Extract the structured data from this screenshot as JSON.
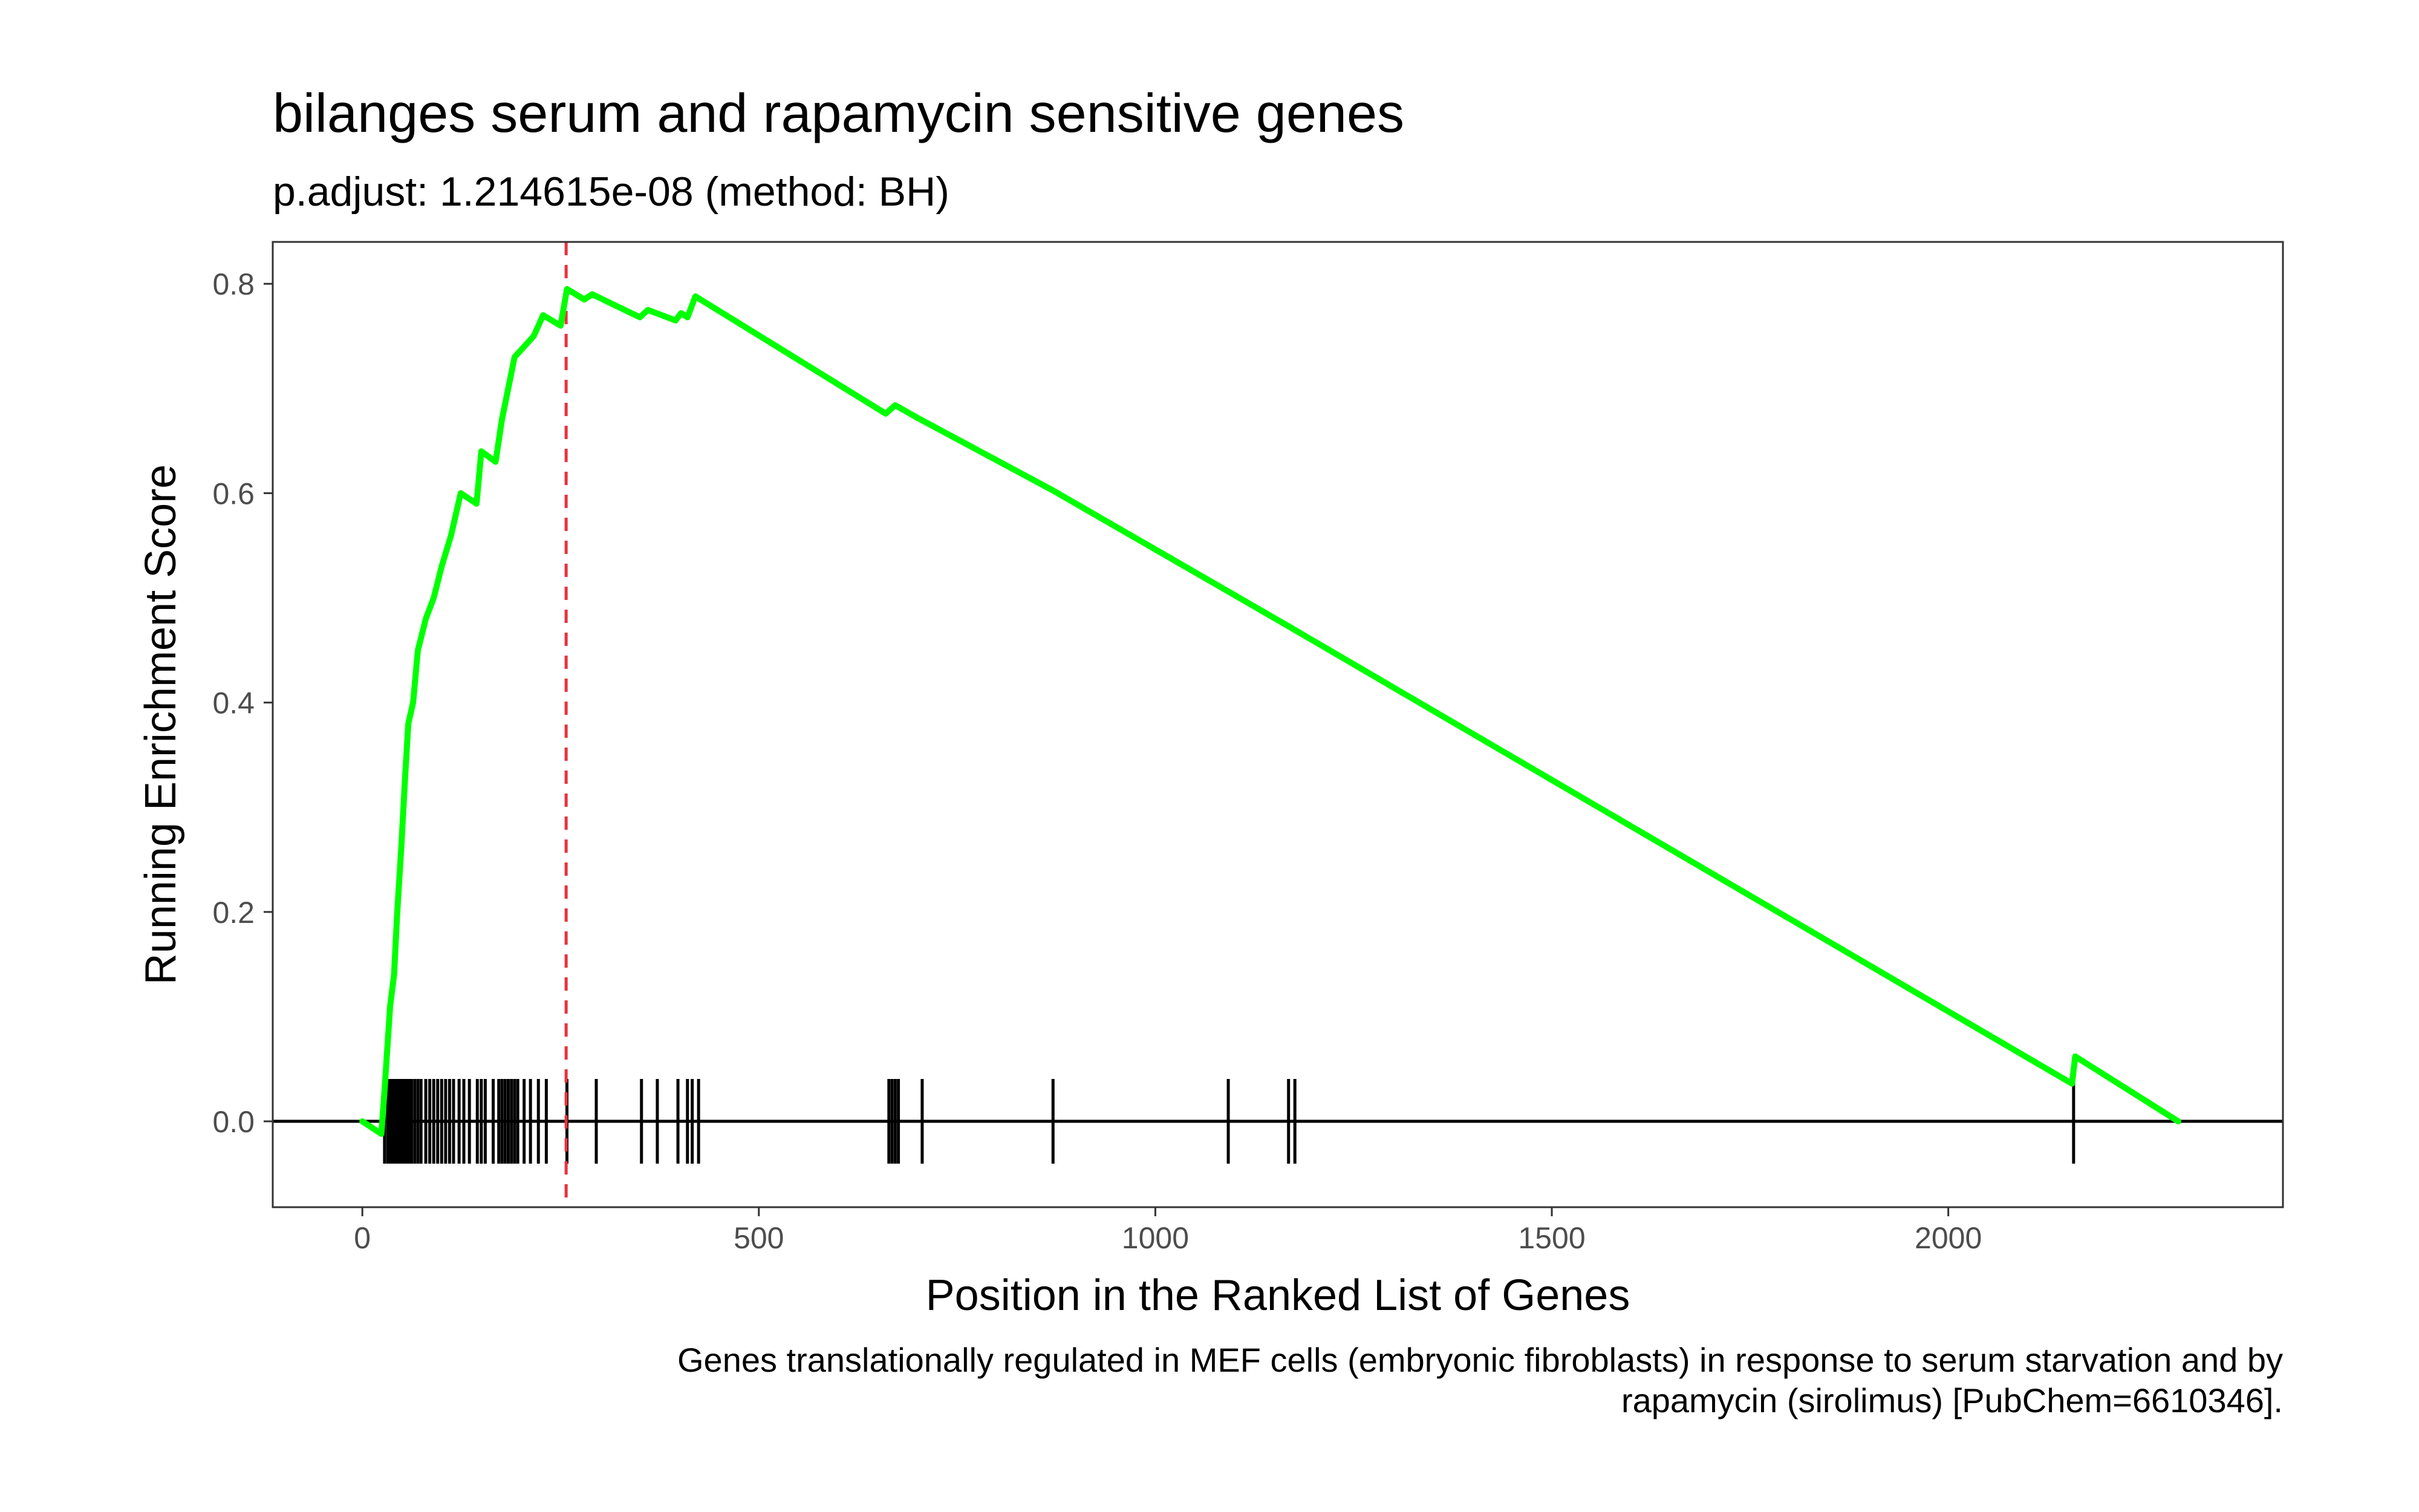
{
  "chart_data": {
    "type": "line",
    "title": "bilanges serum and rapamycin sensitive genes",
    "subtitle": "p.adjust: 1.214615e-08 (method: BH)",
    "xlabel": "Position in the Ranked List of Genes",
    "ylabel": "Running Enrichment Score",
    "caption_lines": [
      "Genes translationally regulated in MEF cells (embryonic fibroblasts) in response to serum starvation and by",
      "rapamycin (sirolimus) [PubChem=6610346]."
    ],
    "xlim": [
      -113,
      2422
    ],
    "ylim": [
      -0.082,
      0.84
    ],
    "x_ticks": [
      0,
      500,
      1000,
      1500,
      2000
    ],
    "x_tick_labels": [
      "0",
      "500",
      "1000",
      "1500",
      "2000"
    ],
    "y_ticks": [
      0.0,
      0.2,
      0.4,
      0.6,
      0.8
    ],
    "y_tick_labels": [
      "0.0",
      "0.2",
      "0.4",
      "0.6",
      "0.8"
    ],
    "grid": false,
    "colors": {
      "running_score": "#00ff00",
      "peak_line": "#e8323c",
      "hits": "#000000",
      "zero_line": "#000000",
      "panel_border": "#333333"
    },
    "peak_position": 257,
    "zero_line_y": 0,
    "series": [
      {
        "values": [
          [
            0,
            0.0
          ],
          [
            24,
            -0.012
          ],
          [
            28,
            0.03
          ],
          [
            35,
            0.11
          ],
          [
            40,
            0.14
          ],
          [
            44,
            0.2
          ],
          [
            49,
            0.26
          ],
          [
            54,
            0.33
          ],
          [
            58,
            0.38
          ],
          [
            64,
            0.4
          ],
          [
            70,
            0.45
          ],
          [
            80,
            0.48
          ],
          [
            90,
            0.5
          ],
          [
            100,
            0.53
          ],
          [
            112,
            0.56
          ],
          [
            124,
            0.6
          ],
          [
            144,
            0.59
          ],
          [
            150,
            0.64
          ],
          [
            168,
            0.63
          ],
          [
            176,
            0.67
          ],
          [
            184,
            0.7
          ],
          [
            192,
            0.73
          ],
          [
            204,
            0.74
          ],
          [
            216,
            0.75
          ],
          [
            228,
            0.77
          ],
          [
            250,
            0.76
          ],
          [
            258,
            0.795
          ],
          [
            280,
            0.785
          ],
          [
            290,
            0.79
          ],
          [
            350,
            0.768
          ],
          [
            360,
            0.775
          ],
          [
            395,
            0.765
          ],
          [
            402,
            0.772
          ],
          [
            410,
            0.768
          ],
          [
            420,
            0.788
          ],
          [
            660,
            0.676
          ],
          [
            672,
            0.684
          ],
          [
            700,
            0.672
          ],
          [
            870,
            0.603
          ],
          [
            1090,
            0.507
          ],
          [
            1170,
            0.472
          ],
          [
            2156,
            0.036
          ],
          [
            2160,
            0.062
          ],
          [
            2290,
            0.0
          ]
        ]
      }
    ],
    "hit_positions": [
      28,
      32,
      35,
      38,
      41,
      44,
      47,
      50,
      53,
      56,
      59,
      62,
      66,
      70,
      74,
      80,
      85,
      90,
      95,
      100,
      105,
      110,
      115,
      122,
      128,
      135,
      145,
      150,
      155,
      165,
      172,
      176,
      180,
      184,
      188,
      192,
      196,
      204,
      212,
      222,
      232,
      258,
      295,
      352,
      372,
      398,
      410,
      416,
      424,
      664,
      668,
      672,
      676,
      706,
      871,
      1092,
      1168,
      1176,
      2158
    ]
  }
}
